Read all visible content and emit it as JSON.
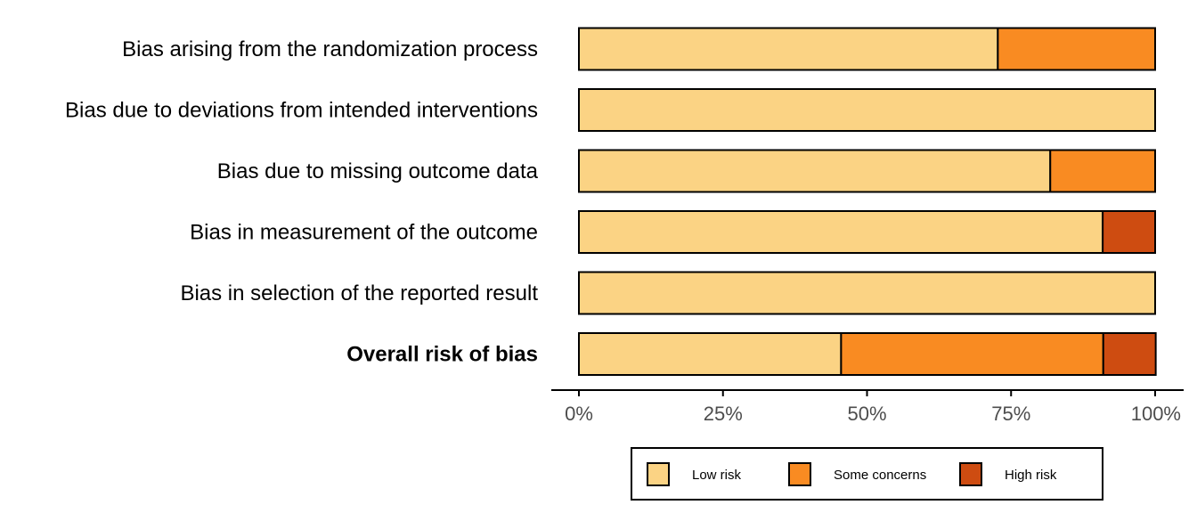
{
  "chart_data": {
    "type": "bar",
    "orientation": "horizontal",
    "stacked": true,
    "categories": [
      "Bias arising from the randomization process",
      "Bias due to deviations from intended interventions",
      "Bias due to missing outcome data",
      "Bias in measurement of the outcome",
      "Bias in selection of the reported result",
      "Overall risk of bias"
    ],
    "bold_categories": [
      "Overall risk of bias"
    ],
    "series": [
      {
        "name": "Low risk",
        "color": "#FBD384",
        "values": [
          72.7,
          100,
          81.8,
          90.9,
          100,
          45.5
        ]
      },
      {
        "name": "Some concerns",
        "color": "#F98B22",
        "values": [
          27.3,
          0,
          18.2,
          0,
          0,
          45.5
        ]
      },
      {
        "name": "High risk",
        "color": "#CE4C11",
        "values": [
          0,
          0,
          0,
          9.1,
          0,
          9.1
        ]
      }
    ],
    "xlim": [
      0,
      100
    ],
    "xticks": [
      0,
      25,
      50,
      75,
      100
    ],
    "xtick_labels": [
      "0%",
      "25%",
      "50%",
      "75%",
      "100%"
    ],
    "title": "",
    "xlabel": "",
    "ylabel": "",
    "grid": false,
    "legend_position": "bottom"
  }
}
